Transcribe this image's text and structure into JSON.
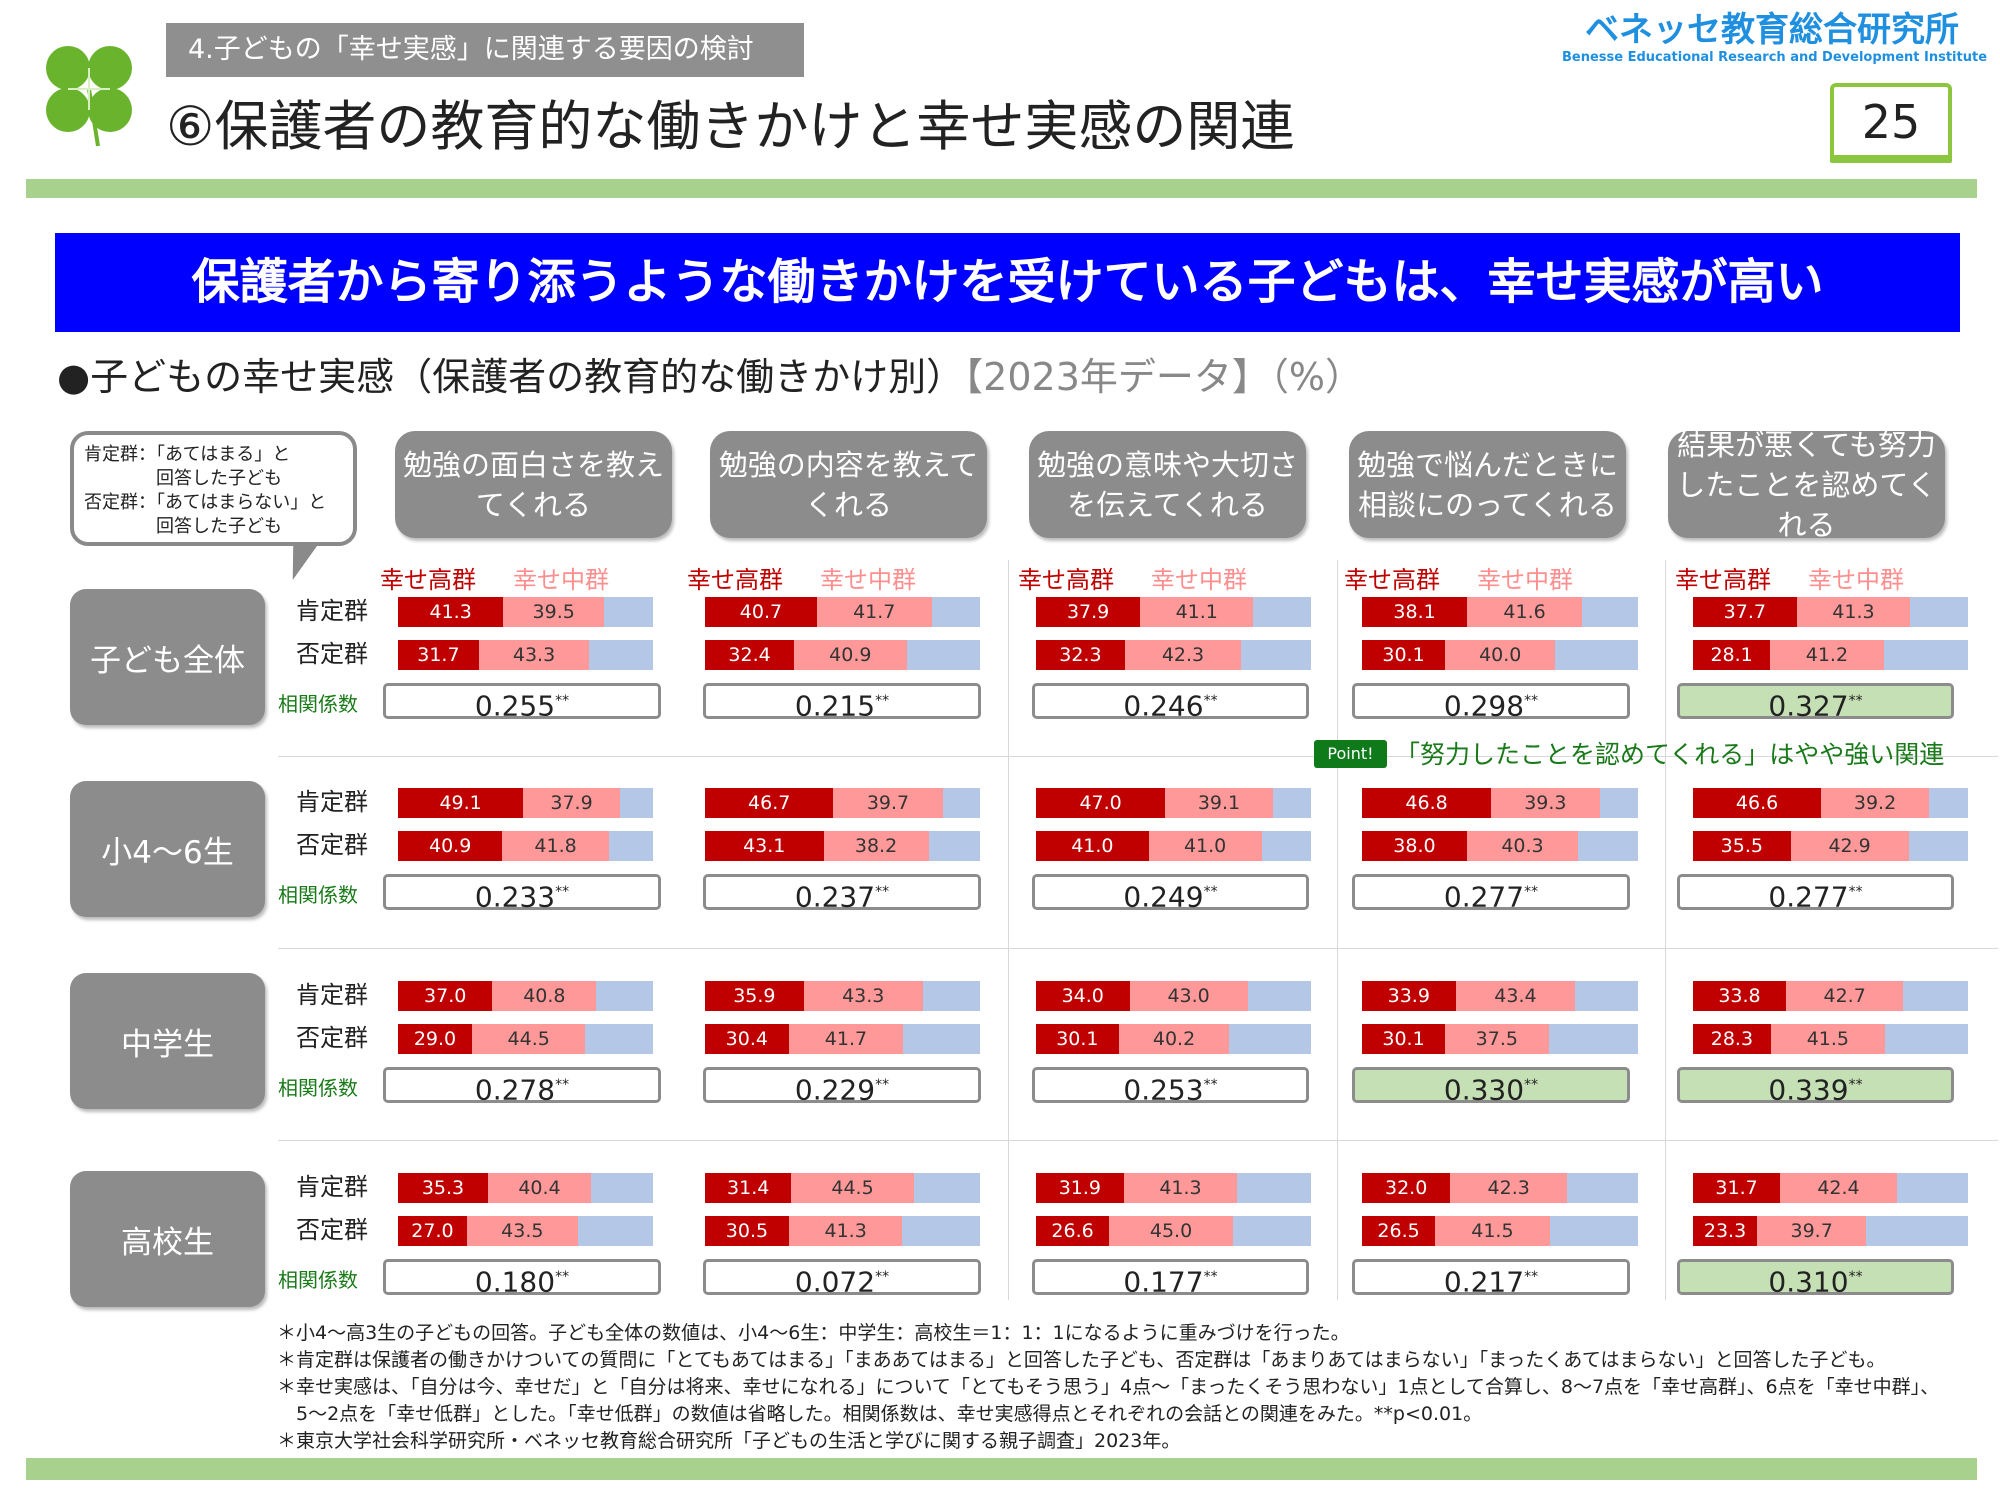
{
  "header": {
    "section_tag": "4.子どもの「幸せ実感」に関連する要因の検討",
    "title": "⑥保護者の教育的な働きかけと幸せ実感の関連",
    "logo_jp": "ベネッセ教育総合研究所",
    "logo_en": "Benesse  Educational Research and Development Institute",
    "page_number": "25"
  },
  "banner": "保護者から寄り添うような働きかけを受けている子どもは、幸せ実感が高い",
  "subtitle": {
    "main": "●子どもの幸せ実感（保護者の教育的な働きかけ別）",
    "note": "【2023年データ】（%）"
  },
  "callout": {
    "line1": "肯定群：「あてはまる」と",
    "line2": "　　　　回答した子ども",
    "line3": "否定群：「あてはまらない」と",
    "line4": "　　　　回答した子ども"
  },
  "columns": [
    "勉強の面白さを教えてくれる",
    "勉強の内容を教えてくれる",
    "勉強の意味や大切さを伝えてくれる",
    "勉強で悩んだときに相談にのってくれる",
    "結果が悪くても努力したことを認めてくれる"
  ],
  "legend": {
    "high": "幸せ高群",
    "mid": "幸せ中群"
  },
  "row_labels": {
    "positive": "肯定群",
    "negative": "否定群",
    "corr": "相関係数"
  },
  "significance": "**",
  "colors": {
    "high": "#c00000",
    "mid": "#ff9999",
    "low": "#b4c7e7",
    "highlight": "#c5e0b4",
    "banner": "#0000ff"
  },
  "chart_data": {
    "type": "stacked-bar",
    "series": [
      "幸せ高群",
      "幸せ中群",
      "幸せ低群(数値省略)"
    ],
    "groups": [
      {
        "name": "子ども全体",
        "cells": [
          {
            "pos": [
              41.3,
              39.5
            ],
            "neg": [
              31.7,
              43.3
            ],
            "corr": "0.255",
            "hl": false
          },
          {
            "pos": [
              40.7,
              41.7
            ],
            "neg": [
              32.4,
              40.9
            ],
            "corr": "0.215",
            "hl": false
          },
          {
            "pos": [
              37.9,
              41.1
            ],
            "neg": [
              32.3,
              42.3
            ],
            "corr": "0.246",
            "hl": false
          },
          {
            "pos": [
              38.1,
              41.6
            ],
            "neg": [
              30.1,
              40.0
            ],
            "corr": "0.298",
            "hl": false
          },
          {
            "pos": [
              37.7,
              41.3
            ],
            "neg": [
              28.1,
              41.2
            ],
            "corr": "0.327",
            "hl": true
          }
        ]
      },
      {
        "name": "小4～6生",
        "cells": [
          {
            "pos": [
              49.1,
              37.9
            ],
            "neg": [
              40.9,
              41.8
            ],
            "corr": "0.233",
            "hl": false
          },
          {
            "pos": [
              46.7,
              39.7
            ],
            "neg": [
              43.1,
              38.2
            ],
            "corr": "0.237",
            "hl": false
          },
          {
            "pos": [
              47.0,
              39.1
            ],
            "neg": [
              41.0,
              41.0
            ],
            "corr": "0.249",
            "hl": false
          },
          {
            "pos": [
              46.8,
              39.3
            ],
            "neg": [
              38.0,
              40.3
            ],
            "corr": "0.277",
            "hl": false
          },
          {
            "pos": [
              46.6,
              39.2
            ],
            "neg": [
              35.5,
              42.9
            ],
            "corr": "0.277",
            "hl": false
          }
        ]
      },
      {
        "name": "中学生",
        "cells": [
          {
            "pos": [
              37.0,
              40.8
            ],
            "neg": [
              29.0,
              44.5
            ],
            "corr": "0.278",
            "hl": false
          },
          {
            "pos": [
              35.9,
              43.3
            ],
            "neg": [
              30.4,
              41.7
            ],
            "corr": "0.229",
            "hl": false
          },
          {
            "pos": [
              34.0,
              43.0
            ],
            "neg": [
              30.1,
              40.2
            ],
            "corr": "0.253",
            "hl": false
          },
          {
            "pos": [
              33.9,
              43.4
            ],
            "neg": [
              30.1,
              37.5
            ],
            "corr": "0.330",
            "hl": true
          },
          {
            "pos": [
              33.8,
              42.7
            ],
            "neg": [
              28.3,
              41.5
            ],
            "corr": "0.339",
            "hl": true
          }
        ]
      },
      {
        "name": "高校生",
        "cells": [
          {
            "pos": [
              35.3,
              40.4
            ],
            "neg": [
              27.0,
              43.5
            ],
            "corr": "0.180",
            "hl": false
          },
          {
            "pos": [
              31.4,
              44.5
            ],
            "neg": [
              30.5,
              41.3
            ],
            "corr": "0.072",
            "hl": false
          },
          {
            "pos": [
              31.9,
              41.3
            ],
            "neg": [
              26.6,
              45.0
            ],
            "corr": "0.177",
            "hl": false
          },
          {
            "pos": [
              32.0,
              42.3
            ],
            "neg": [
              26.5,
              41.5
            ],
            "corr": "0.217",
            "hl": false
          },
          {
            "pos": [
              31.7,
              42.4
            ],
            "neg": [
              23.3,
              39.7
            ],
            "corr": "0.310",
            "hl": true
          }
        ]
      }
    ]
  },
  "point": {
    "badge": "Point!",
    "text": "「努力したことを認めてくれる」はやや強い関連"
  },
  "notes": [
    "＊小4～高3生の子どもの回答。子ども全体の数値は、小4～6生：中学生：高校生＝1：1：1になるように重みづけを行った。",
    "＊肯定群は保護者の働きかけついての質問に「とてもあてはまる」「まああてはまる」と回答した子ども、否定群は「あまりあてはまらない」「まったくあてはまらない」と回答した子ども。",
    "＊幸せ実感は、「自分は今、幸せだ」と「自分は将来、幸せになれる」について「とてもそう思う」4点～「まったくそう思わない」1点として合算し、8～7点を「幸せ高群」、6点を「幸せ中群」、",
    "　5～2点を「幸せ低群」とした。「幸せ低群」の数値は省略した。相関係数は、幸せ実感得点とそれぞれの会話との関連をみた。**p<0.01。",
    "＊東京大学社会科学研究所・ベネッセ教育総合研究所「子どもの生活と学びに関する親子調査」2023年。"
  ]
}
